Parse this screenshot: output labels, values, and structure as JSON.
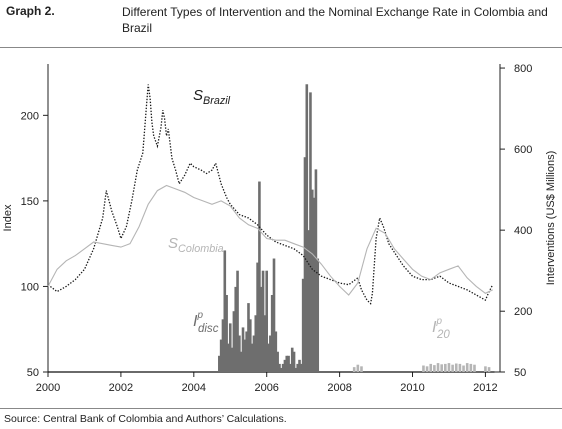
{
  "graph_label": "Graph 2.",
  "title": "Different Types of Intervention and the Nominal Exchange Rate in Colombia and Brazil",
  "source": "Source: Central Bank of Colombia and Authors’ Calculations.",
  "colors": {
    "brazil": "#1a1a1a",
    "colombia": "#b5b5b5",
    "disc": "#6e6e6e",
    "i20": "#b5b5b5",
    "baseline": "#111111"
  },
  "chart_data": {
    "type": "line",
    "ylabel": "Index",
    "y2label": "Interventions (US$ Millions)",
    "xlim": [
      2000,
      2012.4
    ],
    "ylim": [
      50,
      230
    ],
    "y2lim": [
      50,
      810
    ],
    "xticks": [
      2000,
      2002,
      2004,
      2006,
      2008,
      2010,
      2012
    ],
    "yticks": [
      50,
      100,
      150,
      200
    ],
    "y2ticks": [
      50,
      200,
      400,
      600,
      800
    ],
    "annotations": {
      "brazil": {
        "main": "S",
        "sub": "Brazil",
        "sup": ""
      },
      "colombia": {
        "main": "S",
        "sub": "Colombia",
        "sup": ""
      },
      "disc": {
        "main": "I",
        "sub": "disc",
        "sup": "p"
      },
      "i20": {
        "main": "I",
        "sub": "20",
        "sup": "p"
      }
    },
    "series": [
      {
        "key": "brazil",
        "axis": "left",
        "style": "dotted",
        "x": [
          2000.0,
          2000.25,
          2000.5,
          2000.75,
          2001.0,
          2001.25,
          2001.5,
          2001.6,
          2001.75,
          2001.9,
          2002.0,
          2002.15,
          2002.3,
          2002.45,
          2002.6,
          2002.7,
          2002.75,
          2002.8,
          2002.85,
          2002.9,
          2003.0,
          2003.1,
          2003.15,
          2003.2,
          2003.25,
          2003.3,
          2003.4,
          2003.5,
          2003.6,
          2003.75,
          2003.9,
          2004.0,
          2004.2,
          2004.35,
          2004.5,
          2004.6,
          2004.75,
          2004.9,
          2005.0,
          2005.25,
          2005.5,
          2005.75,
          2006.0,
          2006.25,
          2006.5,
          2006.75,
          2007.0,
          2007.25,
          2007.5,
          2007.75,
          2008.0,
          2008.25,
          2008.5,
          2008.6,
          2008.75,
          2008.85,
          2008.9,
          2009.0,
          2009.1,
          2009.2,
          2009.35,
          2009.5,
          2009.75,
          2010.0,
          2010.25,
          2010.5,
          2010.75,
          2011.0,
          2011.25,
          2011.5,
          2011.75,
          2012.0,
          2012.1,
          2012.2
        ],
        "y": [
          101,
          97,
          100,
          104,
          110,
          122,
          140,
          156,
          144,
          135,
          128,
          135,
          150,
          168,
          178,
          205,
          218,
          210,
          196,
          188,
          182,
          193,
          203,
          198,
          188,
          192,
          175,
          168,
          160,
          165,
          172,
          170,
          168,
          166,
          168,
          172,
          160,
          152,
          148,
          142,
          140,
          136,
          130,
          126,
          124,
          122,
          118,
          110,
          106,
          104,
          102,
          101,
          105,
          98,
          92,
          90,
          96,
          128,
          140,
          135,
          125,
          120,
          112,
          106,
          104,
          104,
          106,
          102,
          100,
          98,
          95,
          92,
          97,
          101
        ]
      },
      {
        "key": "colombia",
        "axis": "left",
        "style": "solid",
        "x": [
          2000.0,
          2000.25,
          2000.5,
          2000.75,
          2001.0,
          2001.25,
          2001.5,
          2001.75,
          2002.0,
          2002.25,
          2002.5,
          2002.75,
          2003.0,
          2003.25,
          2003.5,
          2003.75,
          2004.0,
          2004.25,
          2004.5,
          2004.75,
          2005.0,
          2005.25,
          2005.5,
          2005.75,
          2006.0,
          2006.25,
          2006.5,
          2006.75,
          2007.0,
          2007.25,
          2007.5,
          2007.75,
          2008.0,
          2008.25,
          2008.5,
          2008.75,
          2009.0,
          2009.25,
          2009.5,
          2009.75,
          2010.0,
          2010.25,
          2010.5,
          2010.75,
          2011.0,
          2011.25,
          2011.5,
          2011.75,
          2012.0,
          2012.2
        ],
        "y": [
          100,
          110,
          115,
          118,
          122,
          126,
          125,
          124,
          123,
          125,
          135,
          148,
          156,
          159,
          157,
          155,
          152,
          150,
          148,
          150,
          147,
          140,
          136,
          134,
          128,
          127,
          127,
          125,
          123,
          119,
          113,
          106,
          100,
          95,
          102,
          122,
          134,
          131,
          122,
          116,
          110,
          106,
          104,
          108,
          110,
          112,
          105,
          100,
          96,
          98
        ]
      }
    ],
    "bars": [
      {
        "key": "disc",
        "axis": "right",
        "x": [
          2004.7,
          2004.75,
          2004.8,
          2004.85,
          2004.9,
          2004.95,
          2005.0,
          2005.05,
          2005.1,
          2005.15,
          2005.2,
          2005.25,
          2005.3,
          2005.35,
          2005.4,
          2005.45,
          2005.5,
          2005.55,
          2005.6,
          2005.65,
          2005.7,
          2005.75,
          2005.8,
          2005.85,
          2005.9,
          2005.95,
          2006.0,
          2006.05,
          2006.1,
          2006.15,
          2006.2,
          2006.25,
          2006.3,
          2006.35,
          2006.4,
          2006.45,
          2006.5,
          2006.55,
          2006.6,
          2006.65,
          2006.7,
          2006.75,
          2006.8,
          2006.85,
          2006.9,
          2006.95,
          2007.0,
          2007.05,
          2007.1,
          2007.15,
          2007.2,
          2007.25,
          2007.3,
          2007.35,
          2007.4
        ],
        "values": [
          90,
          130,
          180,
          350,
          240,
          120,
          170,
          110,
          200,
          260,
          300,
          140,
          100,
          160,
          130,
          150,
          220,
          180,
          120,
          140,
          190,
          320,
          520,
          260,
          300,
          190,
          300,
          120,
          140,
          240,
          330,
          150,
          100,
          70,
          60,
          70,
          80,
          90,
          90,
          70,
          110,
          100,
          60,
          70,
          80,
          70,
          280,
          580,
          760,
          400,
          740,
          500,
          480,
          550,
          330
        ]
      },
      {
        "key": "i20",
        "axis": "right",
        "x": [
          2008.4,
          2008.5,
          2008.6,
          2010.3,
          2010.4,
          2010.5,
          2010.6,
          2010.7,
          2010.8,
          2010.9,
          2011.0,
          2011.1,
          2011.2,
          2011.3,
          2011.4,
          2011.5,
          2011.6,
          2011.7,
          2012.0,
          2012.1
        ],
        "values": [
          62,
          68,
          64,
          66,
          64,
          70,
          67,
          72,
          69,
          70,
          72,
          68,
          71,
          70,
          66,
          72,
          70,
          68,
          64,
          62
        ]
      }
    ]
  }
}
